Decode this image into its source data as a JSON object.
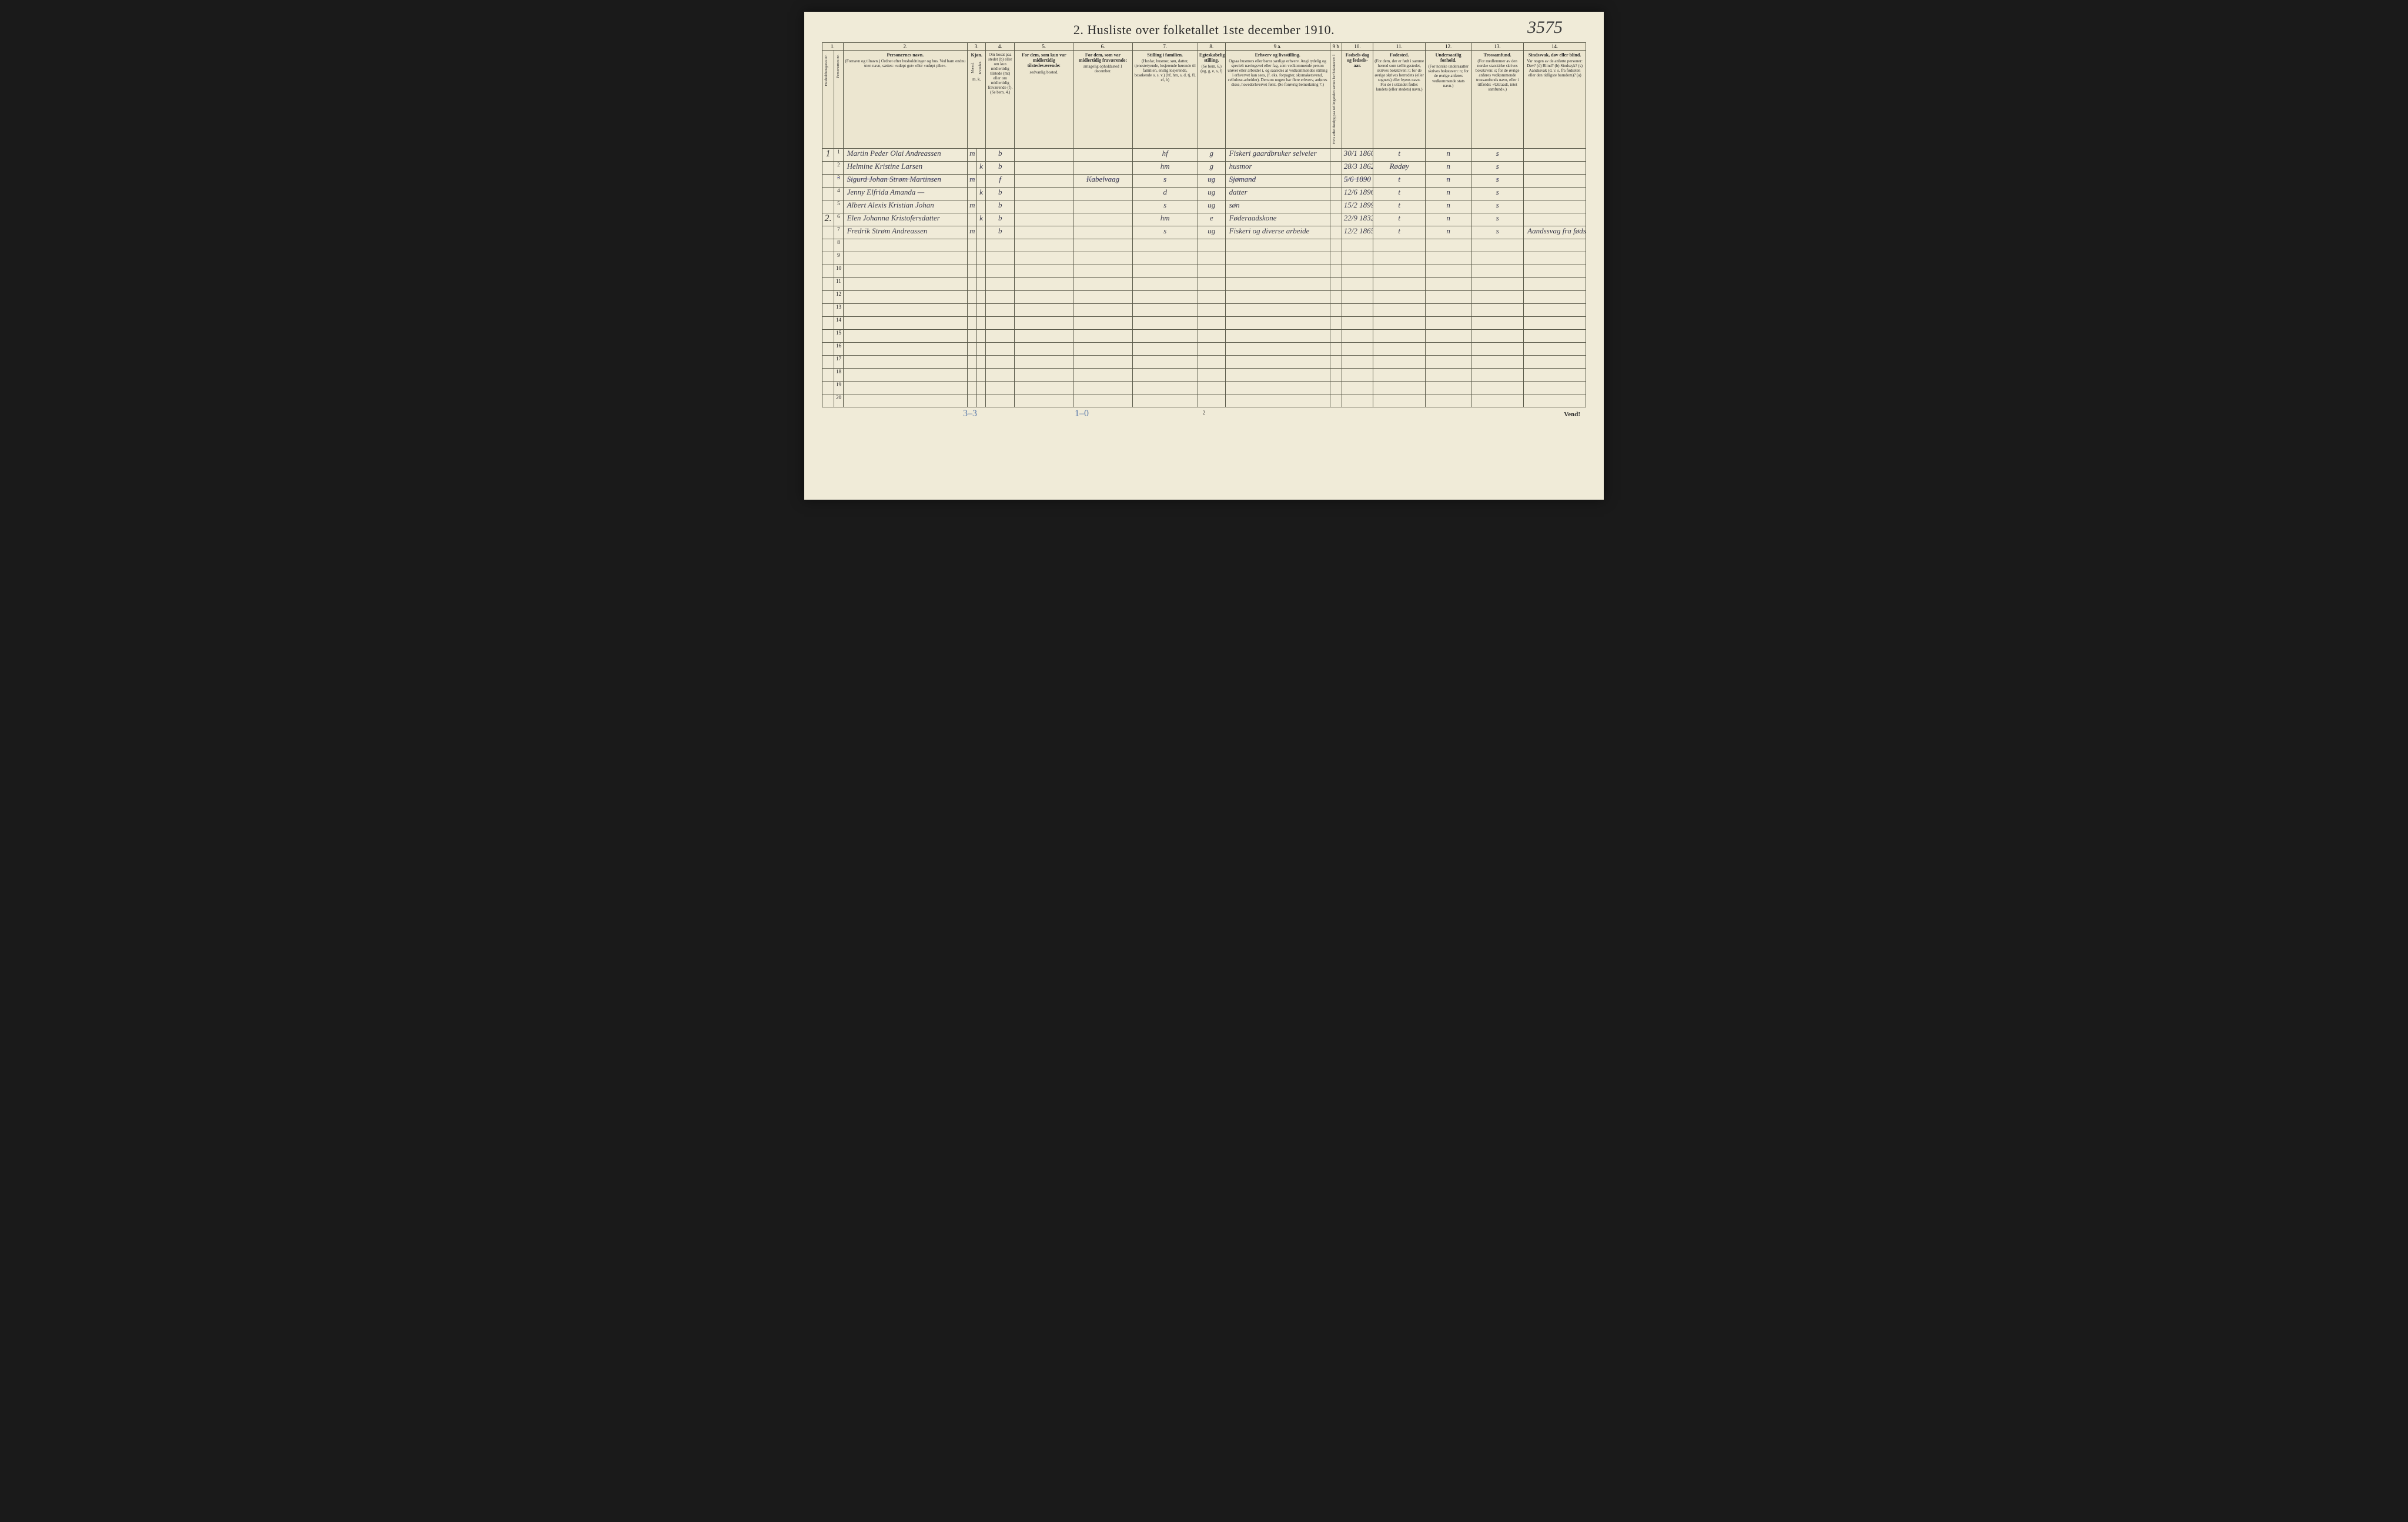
{
  "title": "2.  Husliste over folketallet 1ste december 1910.",
  "handwritten_top_right": "3575",
  "page_number_bottom": "2",
  "vend_label": "Vend!",
  "footer_annotation_left": "3–3",
  "footer_annotation_mid": "1–0",
  "colors": {
    "paper": "#f0ebd8",
    "ink_print": "#2a2a2a",
    "ink_hand": "#3a3a4a",
    "border": "#5a5a4a",
    "blue_pencil": "#5a7aaa"
  },
  "column_numbers": [
    "1.",
    "",
    "2.",
    "3.",
    "",
    "4.",
    "5.",
    "6.",
    "7.",
    "8.",
    "9 a.",
    "9 b",
    "10.",
    "11.",
    "12.",
    "13.",
    "14."
  ],
  "headers": {
    "c1": "Husholdningenes nr.",
    "c1b": "Personernes nr.",
    "c2_strong": "Personernes navn.",
    "c2": "(Fornavn og tilnavn.)\nOrdnet efter husholdninger og hus.\nVed barn endnu uten navn, sættes: «udøpt gut» eller «udøpt pike».",
    "c3_strong": "Kjøn.",
    "c3m": "Mænd.",
    "c3k": "Kvinder.",
    "c3_sub": "m.  k.",
    "c4": "Om bosat paa stedet (b) eller om kun midlertidig tilstede (mt) eller om midlertidig fraværende (f). (Se bem. 4.)",
    "c5_strong": "For dem, som kun var midlertidig tilstedeværende:",
    "c5": "sedvanlig bosted.",
    "c6_strong": "For dem, som var midlertidig fraværende:",
    "c6": "antagelig opholdssted 1 december.",
    "c7_strong": "Stilling i familien.",
    "c7": "(Husfar, husmor, søn, datter, tjenestetyende, losjerende hørende til familien, enslig losjerende, besøkende o. s. v.)\n(hf, hm, s, d, tj, fl, el, b)",
    "c8_strong": "Egteskabelig stilling.",
    "c8": "(Se bem. 6.)\n(ug, g, e, s, f)",
    "c9a_strong": "Erhverv og livsstilling.",
    "c9a": "Ogsaa husmors eller barns særlige erhverv. Angi tydelig og specielt næringsveí eller fag, som vedkommende person utøver eller arbeider i, og saaledes at vedkommendes stilling i erhvervet kan sees, (f. eks. forpagter, skomakersvend, cellulose-arbeider). Dersom nogen har flere erhverv, anføres disse, hovederhvervet først. (Se forøvrig bemerkning 7.)",
    "c9b": "Hvis arbeidsudyg paa tællingstiden sættes her bokstaven: l",
    "c10_strong": "Fødsels-dag og fødsels-aar.",
    "c11_strong": "Fødested.",
    "c11": "(For dem, der er født i samme herred som tællingsstedet, skrives bokstaven: t; for de øvrige skrives herredets (eller sognets) eller byens navn. For de i utlandet fødte: landets (eller stedets) navn.)",
    "c12_strong": "Undersaatlig forhold.",
    "c12": "(For norske undersaatter skrives bokstaven: n; for de øvrige anføres vedkommende stats navn.)",
    "c13_strong": "Trossamfund.",
    "c13": "(For medlemmer av den norske statskirke skrives bokstaven: s; for de øvrige anføres vedkommende trossamfunds navn, eller i tilfælde: «Uttraadt, intet samfund».)",
    "c14_strong": "Sindssvak, døv eller blind.",
    "c14": "Var nogen av de anførte personer:\nDøv?    (d)\nBlind?   (b)\nSindssyk? (s)\nAandssvak (d. v. s. fra fødselen eller den tidligste barndom)? (a)"
  },
  "rows": [
    {
      "hh": "1",
      "pn": "1",
      "name": "Martin Peder Olai Andreassen",
      "sex": "m",
      "res": "b",
      "tmp_away": "",
      "fam": "hf",
      "mar": "g",
      "occ": "Fiskeri gaardbruker selveier",
      "bdate": "30/1 1860",
      "bplace": "t",
      "nat": "n",
      "rel": "s",
      "dis": ""
    },
    {
      "hh": "",
      "pn": "2",
      "name": "Helmine Kristine Larsen",
      "sex": "k",
      "res": "b",
      "tmp_away": "",
      "fam": "hm",
      "mar": "g",
      "occ": "husmor",
      "bdate": "28/3 1862",
      "bplace": "Rødøy",
      "nat": "n",
      "rel": "s",
      "dis": ""
    },
    {
      "hh": "",
      "pn": "3",
      "name": "Sigurd Johan Strøm Martinsen",
      "sex": "m",
      "res": "f",
      "tmp_away": "Kabelvaag",
      "fam": "s",
      "mar": "ug",
      "occ": "Sjømand",
      "bdate": "5/6 1890",
      "bplace": "t",
      "nat": "n",
      "rel": "s",
      "dis": "",
      "struck": true
    },
    {
      "hh": "",
      "pn": "4",
      "name": "Jenny Elfrida Amanda   —",
      "sex": "k",
      "res": "b",
      "tmp_away": "",
      "fam": "d",
      "mar": "ug",
      "occ": "datter",
      "bdate": "12/6 1896",
      "bplace": "t",
      "nat": "n",
      "rel": "s",
      "dis": ""
    },
    {
      "hh": "",
      "pn": "5",
      "name": "Albert Alexis Kristian Johan",
      "sex": "m",
      "res": "b",
      "tmp_away": "",
      "fam": "s",
      "mar": "ug",
      "occ": "søn",
      "bdate": "15/2 1899",
      "bplace": "t",
      "nat": "n",
      "rel": "s",
      "dis": ""
    },
    {
      "hh": "2.",
      "pn": "6",
      "name": "Elen Johanna Kristofersdatter",
      "sex": "k",
      "res": "b",
      "tmp_away": "",
      "fam": "hm",
      "mar": "e",
      "occ": "Føderaadskone",
      "bdate": "22/9 1832",
      "bplace": "t",
      "nat": "n",
      "rel": "s",
      "dis": ""
    },
    {
      "hh": "",
      "pn": "7",
      "name": "Fredrik Strøm Andreassen",
      "sex": "m",
      "res": "b",
      "tmp_away": "",
      "fam": "s",
      "mar": "ug",
      "occ": "Fiskeri og diverse arbeide",
      "bdate": "12/2 1865",
      "bplace": "t",
      "nat": "n",
      "rel": "s",
      "dis": "Aandssvag fra fødselen an"
    }
  ],
  "empty_rows": [
    "8",
    "9",
    "10",
    "11",
    "12",
    "13",
    "14",
    "15",
    "16",
    "17",
    "18",
    "19",
    "20"
  ]
}
